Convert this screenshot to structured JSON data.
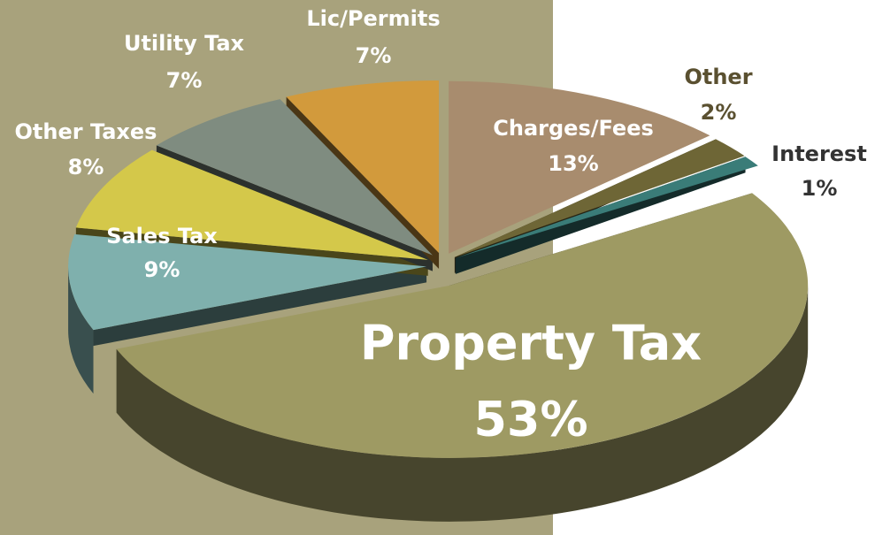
{
  "chart_data": {
    "type": "pie3d",
    "categories": [
      "Charges/Fees",
      "Other",
      "Interest",
      "Property Tax",
      "Sales Tax",
      "Other Taxes",
      "Utility Tax",
      "Lic/Permits"
    ],
    "values": [
      13,
      2,
      1,
      53,
      9,
      8,
      7,
      7
    ],
    "value_labels": [
      "13%",
      "2%",
      "1%",
      "53%",
      "9%",
      "8%",
      "7%",
      "7%"
    ],
    "colors": [
      "#a88c6e",
      "#6e6636",
      "#3a7c78",
      "#9e9a63",
      "#7fb0ad",
      "#d4c84a",
      "#7f8c80",
      "#d29a3c"
    ]
  }
}
